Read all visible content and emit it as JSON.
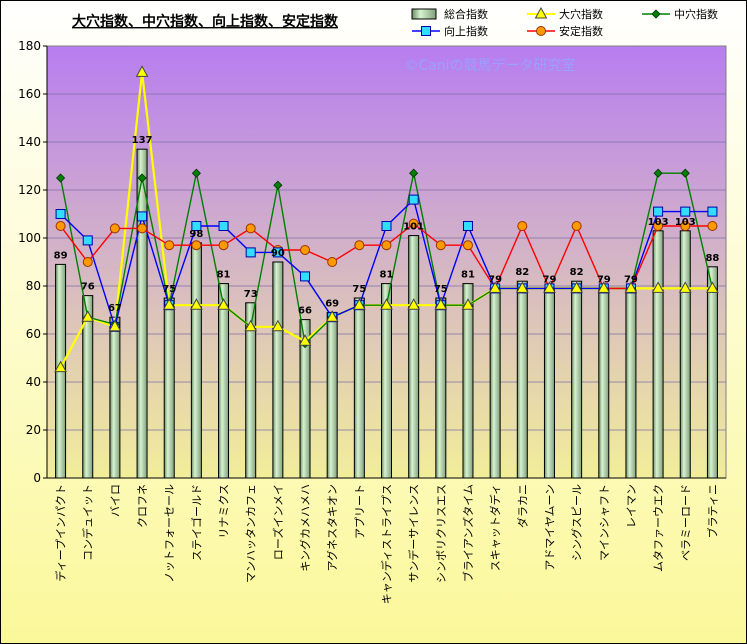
{
  "chart_data": {
    "type": "bar",
    "title": "大穴指数、中穴指数、向上指数、安定指数",
    "watermark": "©Caniの競馬データ研究室",
    "ylim": [
      0,
      180
    ],
    "yticks": [
      0,
      20,
      40,
      60,
      80,
      100,
      120,
      140,
      160,
      180
    ],
    "grid": true,
    "legend_position": "top",
    "categories": [
      "ディープインパクト",
      "コンデュイット",
      "バイロ",
      "クロフネ",
      "ノットフォーセール",
      "ステイゴールド",
      "リナミクス",
      "マンハッタンカフェ",
      "ローズインメイ",
      "キングカメハメハ",
      "アグネスタキオン",
      "アプリート",
      "キャンディストライプス",
      "サンデーサイレンス",
      "シンボリクリスエス",
      "ブライアンズタイム",
      "スキャットダディ",
      "ダラカニ",
      "アドマイヤムーン",
      "シングスピール",
      "マインシャフト",
      "レイマン",
      "ムタファーウエク",
      "ベラミーロード",
      "ブラティニ"
    ],
    "series": [
      {
        "name": "総合指数",
        "kind": "bar",
        "color": "#b8ddb0",
        "values": [
          89,
          76,
          67,
          137,
          75,
          98,
          81,
          73,
          90,
          66,
          69,
          75,
          81,
          101,
          75,
          81,
          79,
          82,
          79,
          82,
          79,
          79,
          103,
          103,
          88
        ]
      },
      {
        "name": "大穴指数",
        "kind": "line",
        "marker": "triangle",
        "color": "#ffff00",
        "values": [
          46,
          67,
          63,
          169,
          72,
          72,
          72,
          63,
          63,
          57,
          67,
          72,
          72,
          72,
          72,
          72,
          79,
          79,
          79,
          79,
          79,
          79,
          79,
          79,
          79
        ]
      },
      {
        "name": "中穴指数",
        "kind": "line",
        "marker": "diamond",
        "color": "#008000",
        "values": [
          125,
          67,
          64,
          125,
          72,
          127,
          72,
          63,
          122,
          56,
          67,
          72,
          72,
          127,
          72,
          72,
          79,
          79,
          79,
          79,
          79,
          79,
          127,
          127,
          79
        ]
      },
      {
        "name": "向上指数",
        "kind": "line",
        "marker": "square",
        "color": "#0000ff",
        "values": [
          110,
          99,
          63,
          109,
          72,
          105,
          105,
          94,
          94,
          84,
          67,
          72,
          105,
          116,
          72,
          105,
          79,
          79,
          79,
          79,
          79,
          79,
          111,
          111,
          111
        ]
      },
      {
        "name": "安定指数",
        "kind": "line",
        "marker": "circle",
        "color": "#ff0000",
        "values": [
          105,
          90,
          104,
          104,
          97,
          97,
          97,
          104,
          95,
          95,
          90,
          97,
          97,
          106,
          97,
          97,
          79,
          105,
          79,
          105,
          79,
          79,
          105,
          105,
          105
        ]
      }
    ],
    "data_labels": [
      "89",
      "76",
      "67",
      "137",
      "75",
      "98",
      "81",
      "73",
      "90",
      "66",
      "69",
      "75",
      "81",
      "101",
      "75",
      "81",
      "79",
      "82",
      "79",
      "82",
      "79",
      "79",
      "103",
      "103",
      "88"
    ]
  }
}
